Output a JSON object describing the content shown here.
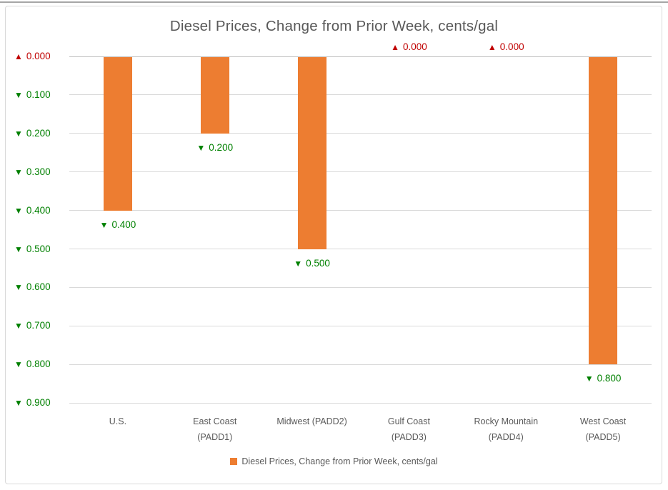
{
  "title": "Diesel Prices, Change from Prior Week, cents/gal",
  "legend": {
    "label": "Diesel Prices, Change from Prior Week, cents/gal",
    "swatch_color": "#ed7d31"
  },
  "colors": {
    "bar": "#ed7d31",
    "increase_red": "#c00000",
    "decrease_green": "#008000",
    "axis_text": "#595959",
    "gridline": "#d9d9d9",
    "axis_line": "#bfbfbf"
  },
  "chart_data": {
    "type": "bar",
    "title": "Diesel Prices, Change from Prior Week, cents/gal",
    "xlabel": "",
    "ylabel": "",
    "ylim": [
      -0.9,
      0.0
    ],
    "grid": true,
    "legend_position": "bottom",
    "series_name": "Diesel Prices, Change from Prior Week, cents/gal",
    "categories": [
      "U.S.",
      "East Coast (PADD1)",
      "Midwest (PADD2)",
      "Gulf Coast (PADD3)",
      "Rocky Mountain (PADD4)",
      "West Coast (PADD5)"
    ],
    "values": [
      -0.4,
      -0.2,
      -0.5,
      0.0,
      0.0,
      -0.8
    ],
    "x_label_lines": [
      [
        "U.S."
      ],
      [
        "East Coast",
        "(PADD1)"
      ],
      [
        "Midwest (PADD2)"
      ],
      [
        "Gulf Coast",
        "(PADD3)"
      ],
      [
        "Rocky Mountain",
        "(PADD4)"
      ],
      [
        "West Coast",
        "(PADD5)"
      ]
    ],
    "data_labels": [
      {
        "arrow": "▼",
        "value": "0.400",
        "direction": "down"
      },
      {
        "arrow": "▼",
        "value": "0.200",
        "direction": "down"
      },
      {
        "arrow": "▼",
        "value": "0.500",
        "direction": "down"
      },
      {
        "arrow": "▲",
        "value": "0.000",
        "direction": "up"
      },
      {
        "arrow": "▲",
        "value": "0.000",
        "direction": "up"
      },
      {
        "arrow": "▼",
        "value": "0.800",
        "direction": "down"
      }
    ],
    "y_ticks": [
      {
        "arrow": "▲",
        "value": "0.000",
        "direction": "up"
      },
      {
        "arrow": "▼",
        "value": "0.100",
        "direction": "down"
      },
      {
        "arrow": "▼",
        "value": "0.200",
        "direction": "down"
      },
      {
        "arrow": "▼",
        "value": "0.300",
        "direction": "down"
      },
      {
        "arrow": "▼",
        "value": "0.400",
        "direction": "down"
      },
      {
        "arrow": "▼",
        "value": "0.500",
        "direction": "down"
      },
      {
        "arrow": "▼",
        "value": "0.600",
        "direction": "down"
      },
      {
        "arrow": "▼",
        "value": "0.700",
        "direction": "down"
      },
      {
        "arrow": "▼",
        "value": "0.800",
        "direction": "down"
      },
      {
        "arrow": "▼",
        "value": "0.900",
        "direction": "down"
      }
    ]
  }
}
